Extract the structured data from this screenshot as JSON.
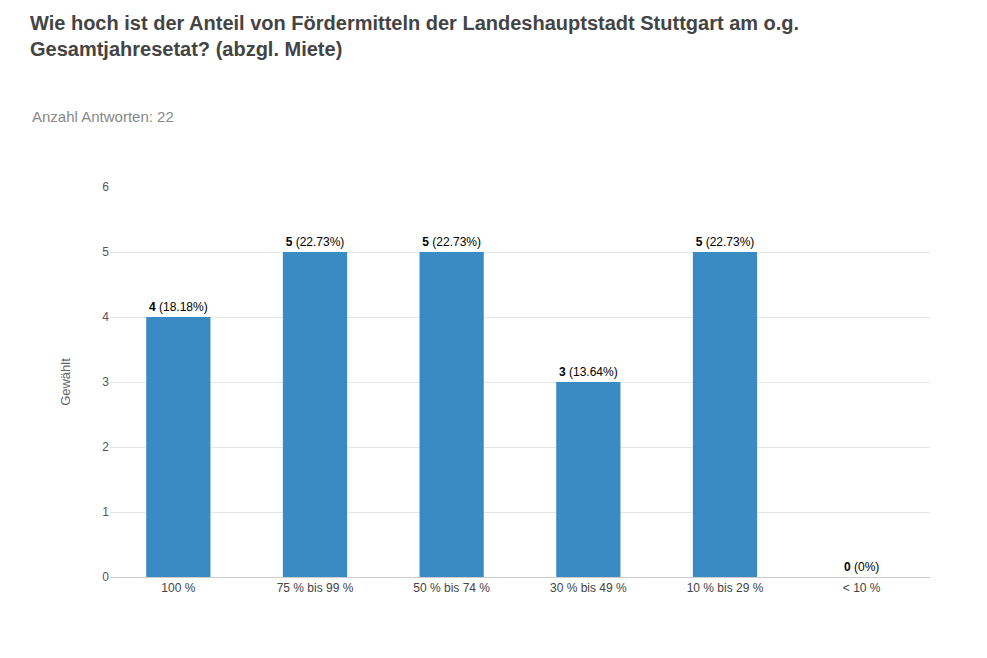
{
  "chart_data": {
    "type": "bar",
    "title": "Wie hoch ist der Anteil von Fördermitteln der Landeshauptstadt Stuttgart am o.g.\nGesamtjahresetat? (abzgl. Miete)",
    "subtitle": "Anzahl Antworten: 22",
    "y_label": "Gewählt",
    "categories": [
      "100 %",
      "75 % bis 99 %",
      "50 % bis 74 %",
      "30 % bis 49 %",
      "10 % bis 29 %",
      "< 10 %"
    ],
    "values": [
      4,
      5,
      5,
      3,
      5,
      0
    ],
    "value_labels": [
      "4 (18.18%)",
      "5 (22.73%)",
      "5 (22.73%)",
      "3 (13.64%)",
      "5 (22.73%)",
      "0 (0%)"
    ],
    "color": "#3a8bc4",
    "ylim": [
      0,
      6
    ],
    "yticks": [
      0,
      1,
      2,
      3,
      4,
      5,
      6
    ],
    "grid": true,
    "data_labels": true
  }
}
